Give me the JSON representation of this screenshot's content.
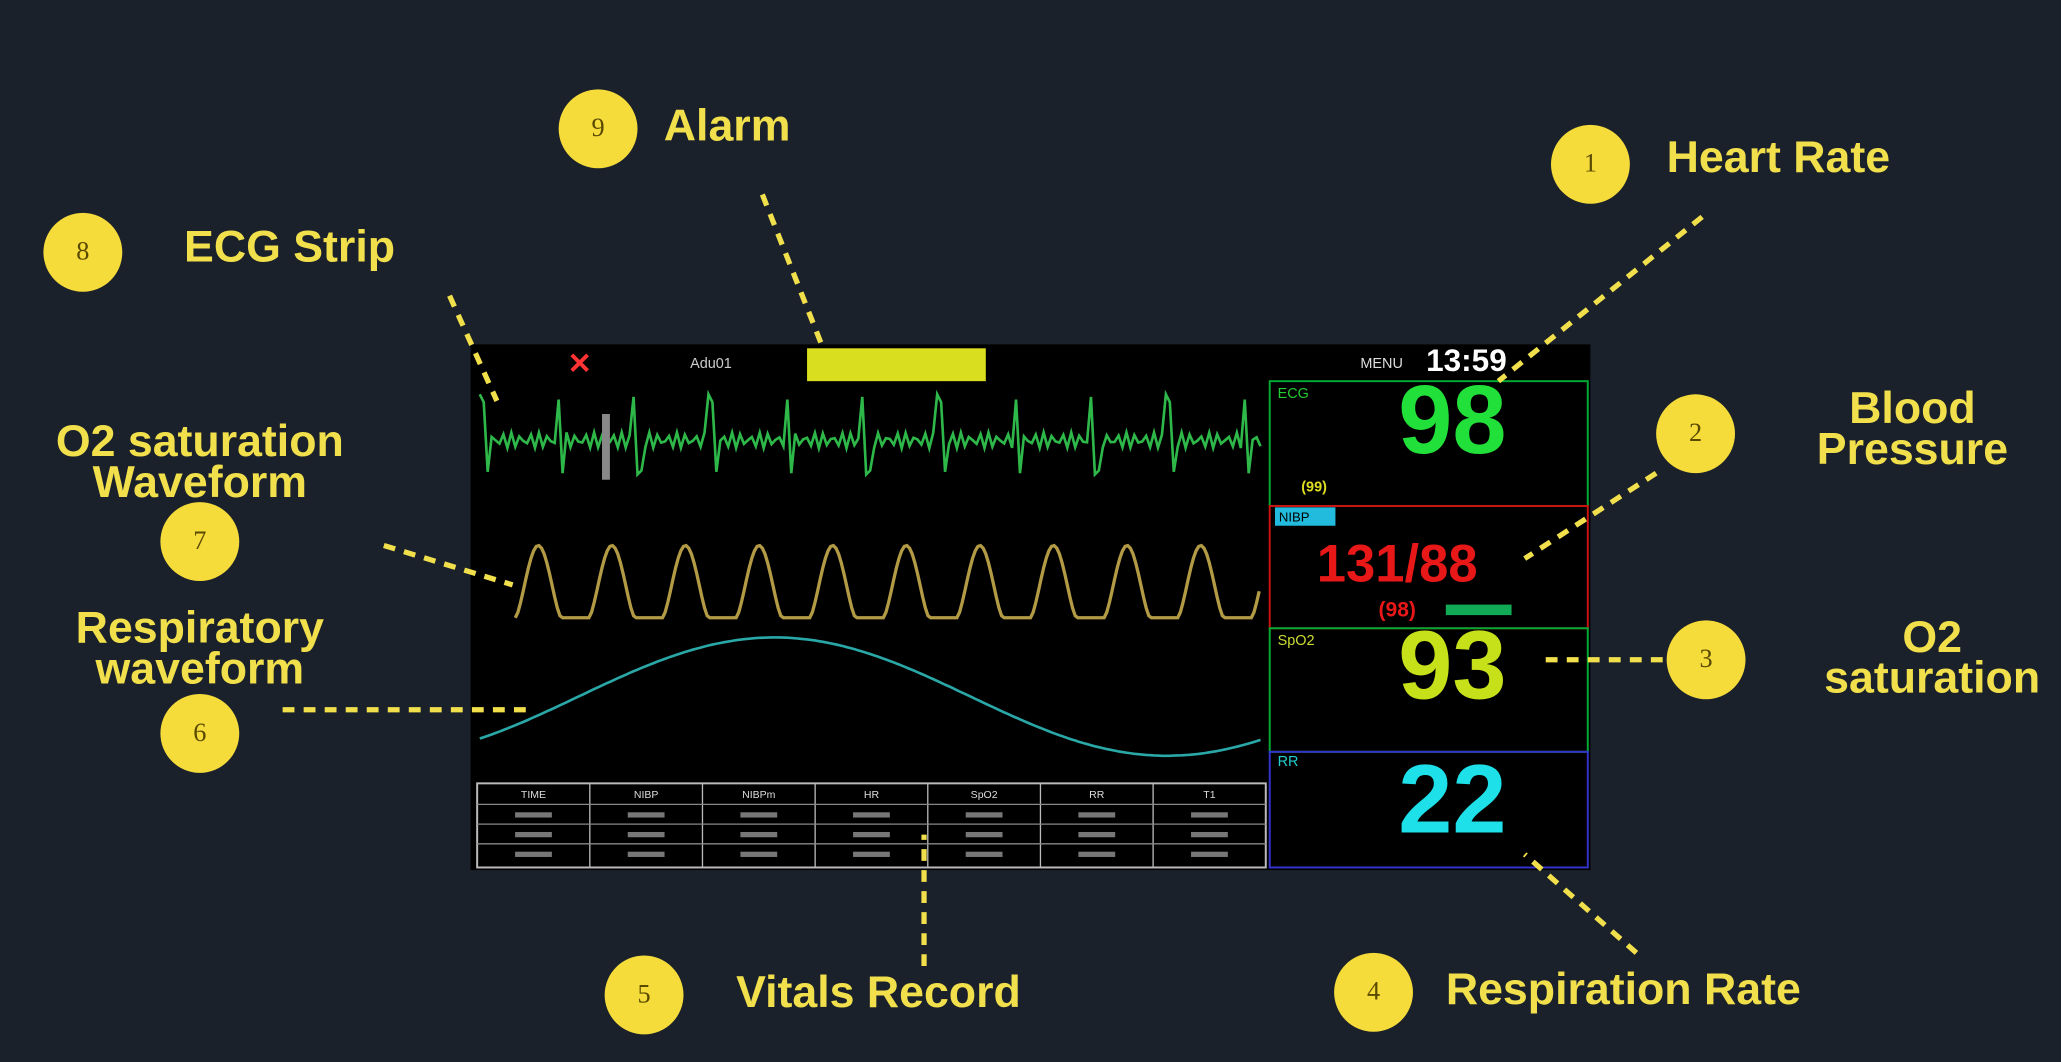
{
  "callouts": [
    {
      "number": 1,
      "lines": [
        "Heart Rate"
      ]
    },
    {
      "number": 2,
      "lines": [
        "Blood",
        "Pressure"
      ]
    },
    {
      "number": 3,
      "lines": [
        "O2",
        "saturation"
      ]
    },
    {
      "number": 4,
      "lines": [
        "Respiration Rate"
      ]
    },
    {
      "number": 5,
      "lines": [
        "Vitals Record"
      ]
    },
    {
      "number": 6,
      "lines": [
        "Respiratory",
        "waveform"
      ]
    },
    {
      "number": 7,
      "lines": [
        "O2 saturation",
        "Waveform"
      ]
    },
    {
      "number": 8,
      "lines": [
        "ECG Strip"
      ]
    },
    {
      "number": 9,
      "lines": [
        "Alarm"
      ]
    }
  ],
  "monitor": {
    "patient": "Adu01",
    "menu": "MENU",
    "clock": "13:59",
    "ecg": {
      "label": "ECG",
      "value": 98,
      "sub": "(99)"
    },
    "nibp": {
      "label": "NIBP",
      "value": "131/88",
      "mean": "(98)"
    },
    "spo2": {
      "label": "SpO2",
      "value": 93
    },
    "resp": {
      "label": "RR",
      "value": 22
    },
    "table": {
      "headers": [
        "TIME",
        "NIBP",
        "NIBPm",
        "HR",
        "SpO2",
        "RR",
        "T1"
      ]
    }
  }
}
